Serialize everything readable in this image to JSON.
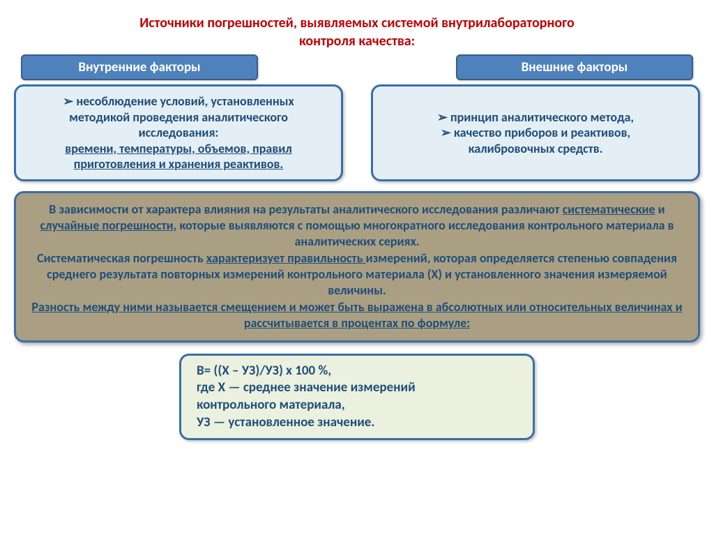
{
  "title_line1": "Источники погрешностей, выявляемых системой внутрилабораторного",
  "title_line2": "контроля качества:",
  "headers": {
    "left": "Внутренние факторы",
    "right": "Внешние факторы"
  },
  "boxes": {
    "left": {
      "line1": "несоблюдение условий, установленных",
      "line2": "методикой проведения аналитического",
      "line3": "исследования:",
      "under1": "времени, температуры, объемов, правил",
      "under2": "приготовления и хранения реактивов."
    },
    "right": {
      "item1": "принцип аналитического метода,",
      "item2a": "качество приборов и реактивов,",
      "item2b": "калибровочных средств."
    }
  },
  "big": {
    "t1": "В зависимости от характера влияния на результаты аналитического исследования различают ",
    "u1": "систематические",
    "t2": " и ",
    "u2": "случайные погрешности",
    "t3": ", которые выявляются с помощью многократного исследования контрольного материала в аналитических сериях.",
    "t4": "Систематическая погрешность ",
    "u3": "характеризует правильность ",
    "t5": "измерений, которая определяется степенью совпадения среднего результата повторных измерений контрольного материала (Х) и установленного значения измеряемой величины.",
    "u4": "Разность между ними называется смещением и может быть выражена в абсолютных или относительных величинах и рассчитывается в процентах по формуле:"
  },
  "formula": {
    "l1": "В= ((Х – УЗ)/УЗ) х 100 %,",
    "l2": "где Х — среднее значение измерений",
    "l3": "контрольного материала,",
    "l4": "УЗ — установленное значение."
  },
  "colors": {
    "title": "#c00000",
    "pill_bg": "#4f81bd",
    "pill_border": "#385d8a",
    "light_bg": "#e3eef5",
    "border_blue": "#3a6ea5",
    "big_bg": "#aa9f83",
    "formula_bg": "#ebf1de",
    "text_dark_blue": "#1f4e79",
    "background": "#ffffff"
  },
  "type": "infographic"
}
